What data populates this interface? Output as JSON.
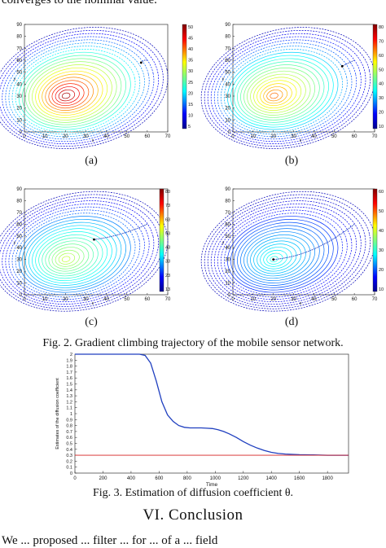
{
  "top_text": "converges to the nominal value.",
  "figure2": {
    "caption": "Fig. 2.   Gradient climbing trajectory of the mobile sensor network.",
    "panels": [
      {
        "label": "(a)",
        "colorbar_ticks": [
          "50",
          "45",
          "40",
          "35",
          "30",
          "25",
          "20",
          "15",
          "10",
          "5"
        ],
        "xticks": [
          "0",
          "10",
          "20",
          "30",
          "40",
          "50",
          "60",
          "70"
        ],
        "yticks": [
          "90",
          "80",
          "70",
          "60",
          "50",
          "40",
          "30",
          "20",
          "10",
          "0"
        ],
        "xlabel": "x",
        "ylabel": "y"
      },
      {
        "label": "(b)",
        "colorbar_ticks": [
          "80",
          "70",
          "60",
          "50",
          "40",
          "30",
          "20",
          "10"
        ],
        "xticks": [
          "0",
          "10",
          "20",
          "30",
          "40",
          "50",
          "60",
          "70"
        ],
        "yticks": [
          "90",
          "80",
          "70",
          "60",
          "50",
          "40",
          "30",
          "20",
          "10",
          "0"
        ],
        "xlabel": "x",
        "ylabel": "y"
      },
      {
        "label": "(c)",
        "colorbar_ticks": [
          "80",
          "73",
          "63",
          "53",
          "43",
          "33",
          "23",
          "13"
        ],
        "xticks": [
          "0",
          "10",
          "20",
          "30",
          "40",
          "50",
          "60",
          "70"
        ],
        "yticks": [
          "90",
          "80",
          "70",
          "60",
          "50",
          "40",
          "30",
          "20",
          "10",
          "0"
        ],
        "xlabel": "x",
        "ylabel": "y"
      },
      {
        "label": "(d)",
        "colorbar_ticks": [
          "60",
          "50",
          "40",
          "30",
          "20",
          "10"
        ],
        "xticks": [
          "0",
          "10",
          "20",
          "30",
          "40",
          "50",
          "60",
          "70"
        ],
        "yticks": [
          "90",
          "80",
          "70",
          "60",
          "50",
          "40",
          "30",
          "20",
          "10",
          "0"
        ],
        "xlabel": "x",
        "ylabel": "y"
      }
    ]
  },
  "figure3": {
    "caption": "Fig. 3.   Estimation of diffusion coefficient θ.",
    "chart_data": {
      "type": "line",
      "xlabel": "Time",
      "ylabel": "Estimates of the diffusion coefficient",
      "xlim": [
        0,
        1950
      ],
      "ylim": [
        0,
        2
      ],
      "xticks": [
        "0",
        "200",
        "400",
        "600",
        "800",
        "1000",
        "1200",
        "1400",
        "1600",
        "1800"
      ],
      "yticks": [
        "2",
        "1.9",
        "1.8",
        "1.7",
        "1.6",
        "1.5",
        "1.4",
        "1.3",
        "1.2",
        "1.1",
        "1",
        "0.9",
        "0.8",
        "0.7",
        "0.6",
        "0.5",
        "0.4",
        "0.3",
        "0.2",
        "0.1",
        "0"
      ],
      "series": [
        {
          "color": "#1f3fbf",
          "x": [
            0,
            460,
            500,
            540,
            580,
            620,
            660,
            700,
            740,
            780,
            820,
            860,
            900,
            940,
            980,
            1020,
            1060,
            1100,
            1150,
            1200,
            1250,
            1300,
            1350,
            1400,
            1450,
            1500,
            1600,
            1700,
            1800,
            1900,
            1950
          ],
          "y": [
            2,
            2,
            1.98,
            1.85,
            1.55,
            1.2,
            0.98,
            0.87,
            0.8,
            0.77,
            0.76,
            0.76,
            0.76,
            0.755,
            0.75,
            0.73,
            0.7,
            0.66,
            0.6,
            0.53,
            0.47,
            0.42,
            0.38,
            0.35,
            0.33,
            0.32,
            0.31,
            0.305,
            0.3,
            0.3,
            0.3
          ]
        },
        {
          "color": "#d62020",
          "x": [
            0,
            1950
          ],
          "y": [
            0.3,
            0.3
          ]
        }
      ]
    }
  },
  "section_title": "VI.  Conclusion",
  "bottom_text": "We ... proposed ... filter ... for ... of a ... field"
}
